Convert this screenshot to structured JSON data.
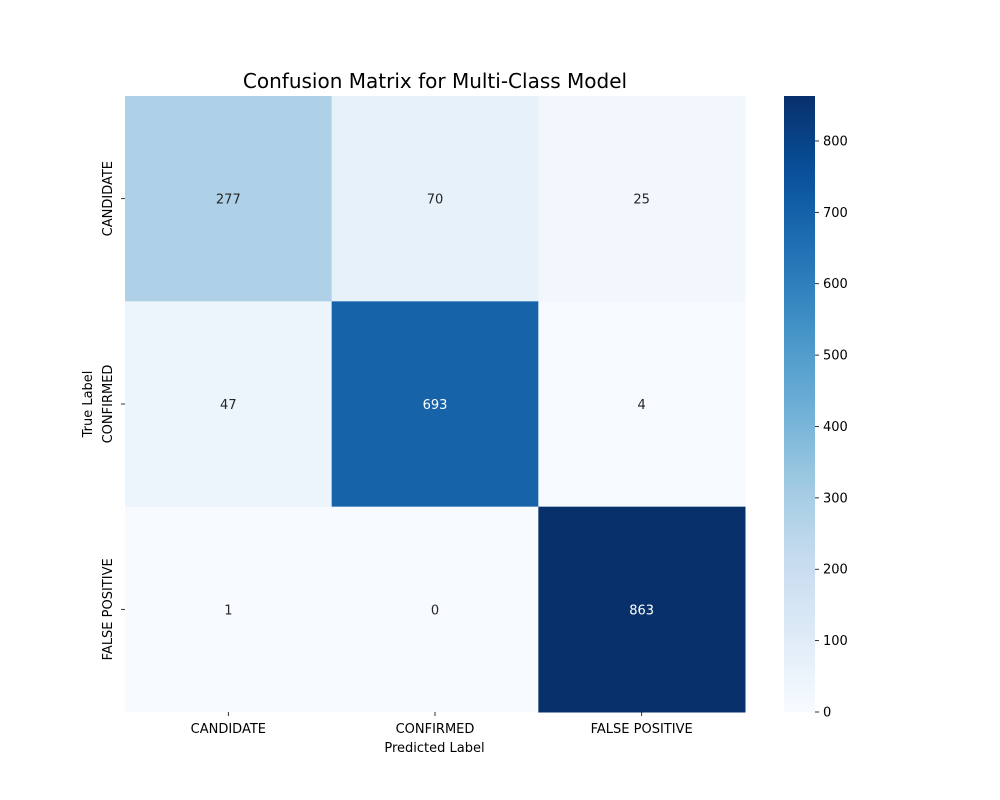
{
  "chart_data": {
    "type": "heatmap",
    "title": "Confusion Matrix for Multi-Class Model",
    "xlabel": "Predicted Label",
    "ylabel": "True Label",
    "x_categories": [
      "CANDIDATE",
      "CONFIRMED",
      "FALSE POSITIVE"
    ],
    "y_categories": [
      "CANDIDATE",
      "CONFIRMED",
      "FALSE POSITIVE"
    ],
    "values": [
      [
        277,
        70,
        25
      ],
      [
        47,
        693,
        4
      ],
      [
        1,
        0,
        863
      ]
    ],
    "colormap": "Blues",
    "colorbar": {
      "min": 0,
      "max": 863,
      "ticks": [
        0,
        100,
        200,
        300,
        400,
        500,
        600,
        700,
        800
      ]
    }
  }
}
